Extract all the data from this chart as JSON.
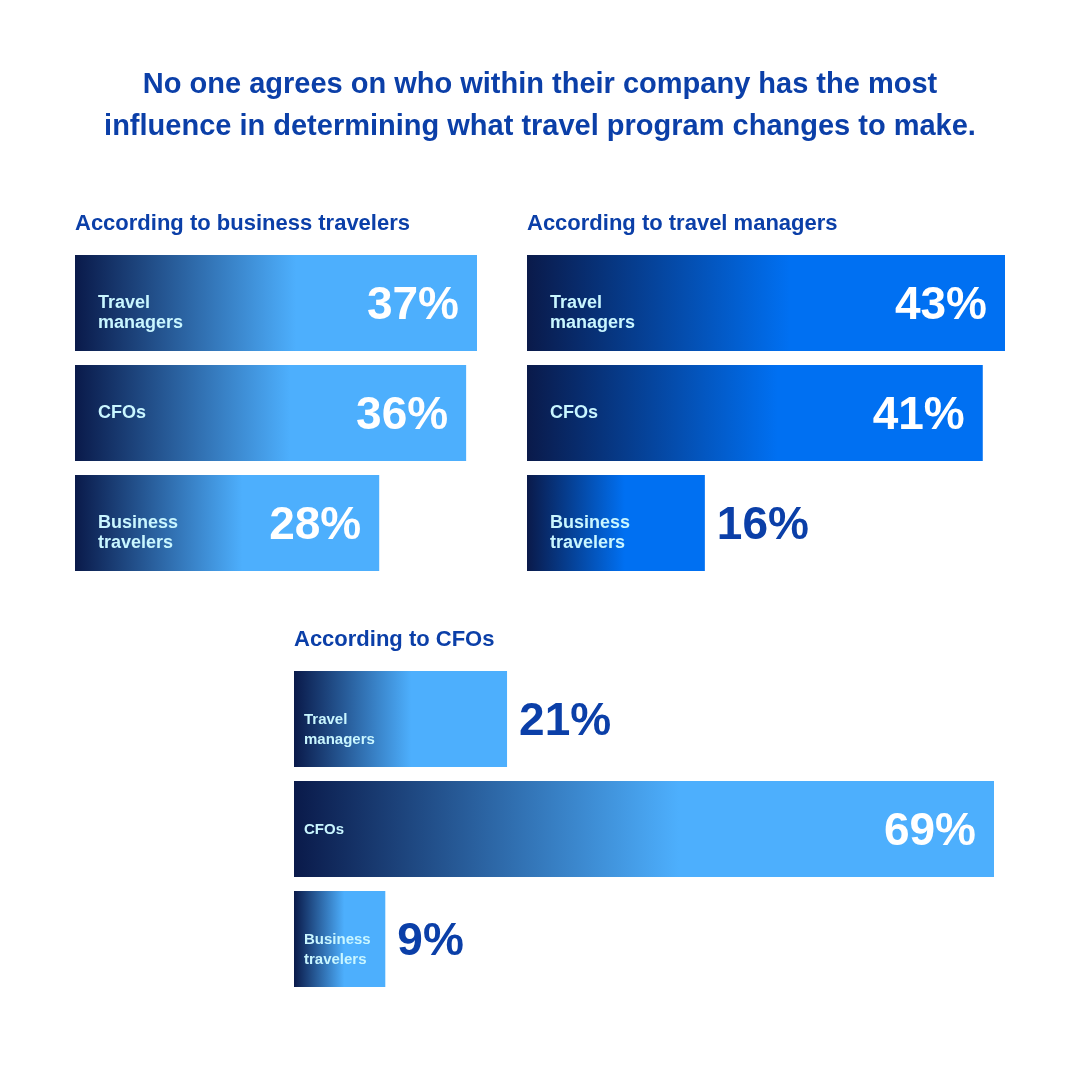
{
  "chart_data": [
    {
      "type": "other",
      "title": "No one agrees on who within their company has the most influence in determining what travel program changes to make."
    },
    {
      "type": "bar",
      "orientation": "horizontal",
      "title": "According to business travelers",
      "categories": [
        "Travel managers",
        "CFOs",
        "Business travelers"
      ],
      "values": [
        37,
        36,
        28
      ],
      "value_labels": [
        "37%",
        "36%",
        "28%"
      ],
      "data_labels": true,
      "color": "#4daffd"
    },
    {
      "type": "bar",
      "orientation": "horizontal",
      "title": "According to travel managers",
      "categories": [
        "Travel managers",
        "CFOs",
        "Business travelers"
      ],
      "values": [
        43,
        41,
        16
      ],
      "value_labels": [
        "43%",
        "41%",
        "16%"
      ],
      "data_labels": true,
      "color": "#0070f2"
    },
    {
      "type": "bar",
      "orientation": "horizontal",
      "title": "According to CFOs",
      "categories": [
        "Travel managers",
        "CFOs",
        "Business travelers"
      ],
      "values": [
        21,
        69,
        9
      ],
      "value_labels": [
        "21%",
        "69%",
        "9%"
      ],
      "data_labels": true,
      "color": "#4daffd"
    }
  ]
}
